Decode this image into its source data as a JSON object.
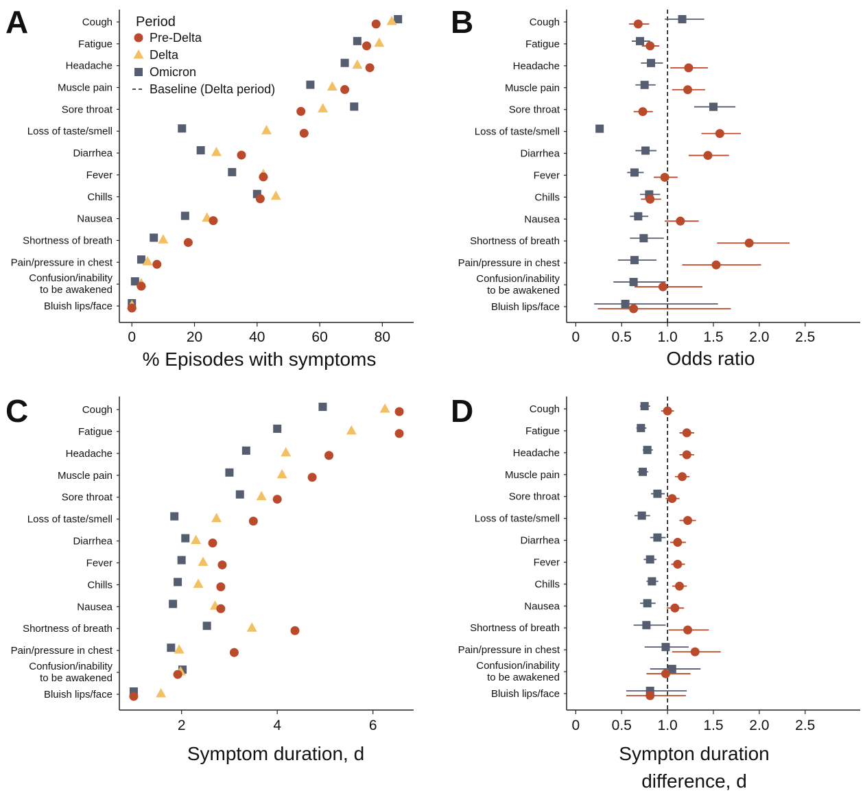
{
  "categories": [
    "Cough",
    "Fatigue",
    "Headache",
    "Muscle pain",
    "Sore throat",
    "Loss of taste/smell",
    "Diarrhea",
    "Fever",
    "Chills",
    "Nausea",
    "Shortness of breath",
    "Pain/pressure in chest",
    "Confusion/inability to be awakened",
    "Bluish lips/face"
  ],
  "colors": {
    "pre_delta": "#b94a2c",
    "delta": "#f2c063",
    "omicron": "#555d70"
  },
  "legend": {
    "title": "Period",
    "items": [
      {
        "key": "pre_delta",
        "label": "Pre-Delta",
        "marker": "circle"
      },
      {
        "key": "delta",
        "label": "Delta",
        "marker": "triangle"
      },
      {
        "key": "omicron",
        "label": "Omicron",
        "marker": "square"
      },
      {
        "key": "baseline",
        "label": "Baseline (Delta period)",
        "marker": "dashed-line"
      }
    ]
  },
  "chart_data": [
    {
      "panel": "A",
      "type": "scatter",
      "xlabel": "% Episodes with symptoms",
      "xlim": [
        -4,
        90
      ],
      "xticks": [
        0,
        20,
        40,
        60,
        80
      ],
      "series": [
        {
          "name": "Pre-Delta",
          "key": "pre_delta",
          "values": [
            78,
            75,
            76,
            68,
            54,
            55,
            35,
            42,
            41,
            26,
            18,
            8,
            3,
            0
          ]
        },
        {
          "name": "Delta",
          "key": "delta",
          "values": [
            83,
            79,
            72,
            64,
            61,
            43,
            27,
            42,
            46,
            24,
            10,
            5,
            3,
            0
          ]
        },
        {
          "name": "Omicron",
          "key": "omicron",
          "values": [
            85,
            72,
            68,
            57,
            71,
            16,
            22,
            32,
            40,
            17,
            7,
            3,
            1,
            0
          ]
        }
      ]
    },
    {
      "panel": "B",
      "type": "scatter",
      "xlabel": "Odds ratio",
      "xlim": [
        -0.1,
        3.1
      ],
      "xticks": [
        "0",
        "0.5",
        "1.0",
        "1.5",
        "2.0",
        "2.5"
      ],
      "baseline": 1.0,
      "series": [
        {
          "name": "Pre-Delta",
          "key": "pre_delta",
          "values": [
            0.68,
            0.81,
            1.23,
            1.22,
            0.73,
            1.57,
            1.44,
            0.97,
            0.81,
            1.14,
            1.89,
            1.53,
            0.95,
            0.63
          ],
          "lower": [
            0.58,
            0.72,
            1.03,
            1.05,
            0.63,
            1.37,
            1.23,
            0.85,
            0.71,
            0.97,
            1.54,
            1.16,
            0.64,
            0.24
          ],
          "upper": [
            0.8,
            0.91,
            1.44,
            1.41,
            0.84,
            1.8,
            1.67,
            1.11,
            0.93,
            1.34,
            2.33,
            2.02,
            1.38,
            1.69
          ]
        },
        {
          "name": "Omicron",
          "key": "omicron",
          "values": [
            1.16,
            0.7,
            0.82,
            0.75,
            1.5,
            0.26,
            0.76,
            0.64,
            0.8,
            0.68,
            0.74,
            0.64,
            0.63,
            0.54
          ],
          "lower": [
            0.97,
            0.61,
            0.71,
            0.65,
            1.29,
            0.23,
            0.65,
            0.56,
            0.7,
            0.59,
            0.59,
            0.46,
            0.41,
            0.2
          ],
          "upper": [
            1.4,
            0.81,
            0.95,
            0.87,
            1.74,
            0.29,
            0.88,
            0.74,
            0.92,
            0.79,
            0.96,
            0.88,
            0.98,
            1.55
          ]
        }
      ]
    },
    {
      "panel": "C",
      "type": "scatter",
      "xlabel": "Symptom duration, d",
      "xlim": [
        0.7,
        6.85
      ],
      "xticks": [
        2,
        4,
        6
      ],
      "series": [
        {
          "name": "Pre-Delta",
          "key": "pre_delta",
          "values": [
            6.55,
            6.55,
            5.08,
            4.73,
            4.0,
            3.5,
            2.65,
            2.85,
            2.82,
            2.82,
            4.37,
            3.1,
            1.92,
            1.0
          ]
        },
        {
          "name": "Delta",
          "key": "delta",
          "values": [
            6.25,
            5.55,
            4.18,
            4.1,
            3.67,
            2.73,
            2.3,
            2.45,
            2.35,
            2.7,
            3.47,
            1.95,
            1.98,
            1.57
          ]
        },
        {
          "name": "Omicron",
          "key": "omicron",
          "values": [
            4.95,
            4.0,
            3.35,
            3.0,
            3.22,
            1.85,
            2.08,
            2.0,
            1.92,
            1.82,
            2.53,
            1.78,
            2.02,
            1.0
          ]
        }
      ]
    },
    {
      "panel": "D",
      "type": "scatter",
      "xlabel": "Sympton duration difference, d",
      "xlim": [
        -0.1,
        3.1
      ],
      "xticks": [
        "0",
        "0.5",
        "1.0",
        "1.5",
        "2.0",
        "2.5"
      ],
      "baseline": 1.0,
      "series": [
        {
          "name": "Pre-Delta",
          "key": "pre_delta",
          "values": [
            1.0,
            1.21,
            1.21,
            1.16,
            1.05,
            1.22,
            1.11,
            1.11,
            1.13,
            1.08,
            1.22,
            1.3,
            0.98,
            0.81
          ],
          "lower": [
            0.93,
            1.13,
            1.13,
            1.08,
            0.98,
            1.13,
            1.03,
            1.04,
            1.05,
            0.99,
            1.01,
            1.05,
            0.77,
            0.55
          ],
          "upper": [
            1.07,
            1.29,
            1.29,
            1.24,
            1.13,
            1.31,
            1.2,
            1.19,
            1.21,
            1.18,
            1.45,
            1.58,
            1.25,
            1.2
          ]
        },
        {
          "name": "Omicron",
          "key": "omicron",
          "values": [
            0.75,
            0.71,
            0.78,
            0.73,
            0.89,
            0.72,
            0.89,
            0.81,
            0.83,
            0.78,
            0.77,
            0.98,
            1.05,
            0.81
          ],
          "lower": [
            0.7,
            0.66,
            0.73,
            0.67,
            0.82,
            0.64,
            0.81,
            0.74,
            0.77,
            0.7,
            0.63,
            0.75,
            0.81,
            0.55
          ],
          "upper": [
            0.81,
            0.77,
            0.84,
            0.79,
            0.97,
            0.81,
            0.98,
            0.88,
            0.9,
            0.87,
            0.98,
            1.23,
            1.36,
            1.21
          ]
        }
      ]
    }
  ]
}
